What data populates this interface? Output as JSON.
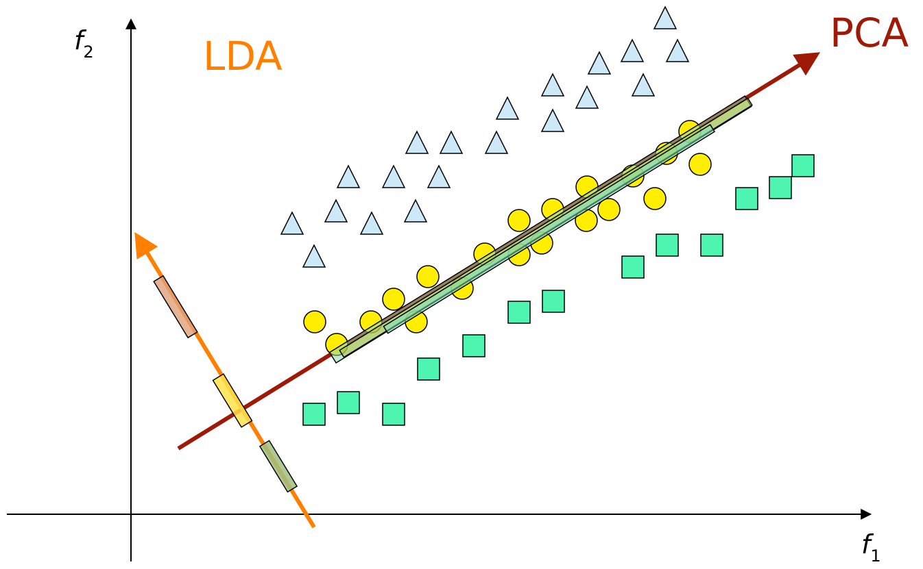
{
  "axes": {
    "x_label": "f",
    "x_subscript": "1",
    "y_label": "f",
    "y_subscript": "2"
  },
  "labels": {
    "pca": "PCA",
    "lda": "LDA"
  },
  "colors": {
    "axis": "#000000",
    "pca": "#9e1a06",
    "lda": "#ff8000",
    "triangle": "#cde9f8",
    "circle": "#ffee00",
    "square": "#4df5b0",
    "pca_projection": "#8fd9a8",
    "lda_projection_triangle": "#e0a07a",
    "lda_projection_circle": "#ffe24a",
    "lda_projection_square": "#a0c080"
  },
  "classes": [
    "triangle",
    "circle",
    "square"
  ]
}
